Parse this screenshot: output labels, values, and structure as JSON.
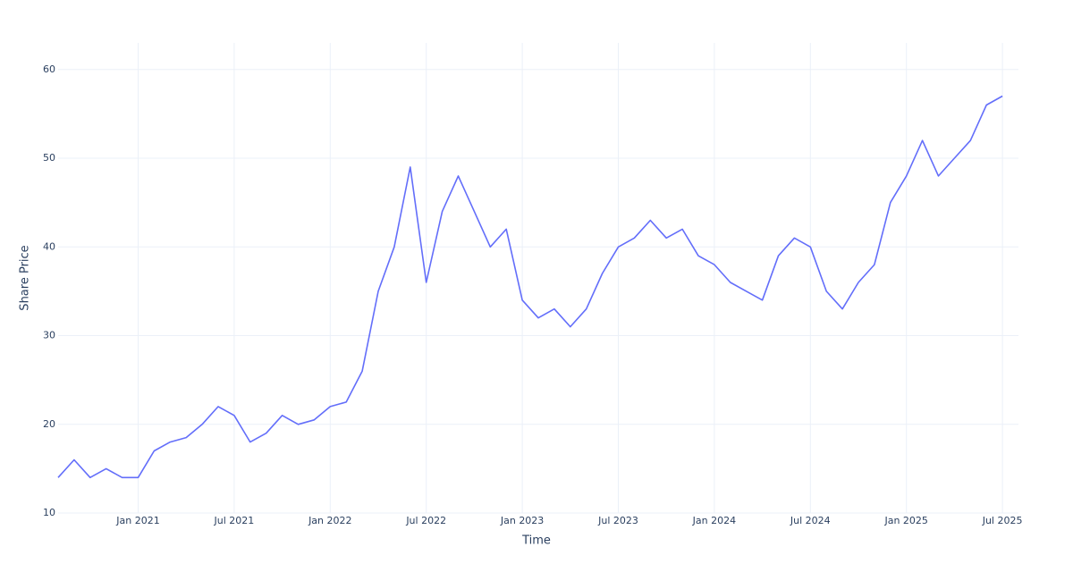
{
  "chart_data": {
    "type": "line",
    "x_label": "Time",
    "y_label": "Share Price",
    "x": [
      "2020-08",
      "2020-09",
      "2020-10",
      "2020-11",
      "2020-12",
      "2021-01",
      "2021-02",
      "2021-03",
      "2021-04",
      "2021-05",
      "2021-06",
      "2021-07",
      "2021-08",
      "2021-09",
      "2021-10",
      "2021-11",
      "2021-12",
      "2022-01",
      "2022-02",
      "2022-03",
      "2022-04",
      "2022-05",
      "2022-06",
      "2022-07",
      "2022-08",
      "2022-09",
      "2022-10",
      "2022-11",
      "2022-12",
      "2023-01",
      "2023-02",
      "2023-03",
      "2023-04",
      "2023-05",
      "2023-06",
      "2023-07",
      "2023-08",
      "2023-09",
      "2023-10",
      "2023-11",
      "2023-12",
      "2024-01",
      "2024-02",
      "2024-03",
      "2024-04",
      "2024-05",
      "2024-06",
      "2024-07",
      "2024-08",
      "2024-09",
      "2024-10",
      "2024-11",
      "2024-12",
      "2025-01",
      "2025-02",
      "2025-03",
      "2025-04",
      "2025-05",
      "2025-06",
      "2025-07"
    ],
    "series": [
      {
        "name": "Share Price",
        "color": "#636efa",
        "values": [
          14,
          16,
          14,
          15,
          14,
          14,
          17,
          18,
          18.5,
          20,
          22,
          21,
          18,
          19,
          21,
          20,
          20.5,
          22,
          22.5,
          26,
          35,
          40,
          49,
          36,
          44,
          48,
          44,
          40,
          42,
          34,
          32,
          33,
          31,
          33,
          37,
          40,
          41,
          43,
          41,
          42,
          39,
          38,
          36,
          35,
          34,
          39,
          41,
          40,
          35,
          33,
          36,
          38,
          45,
          48,
          52,
          48,
          50,
          52,
          56,
          57
        ]
      }
    ],
    "xlim": [
      "2020-08",
      "2025-08"
    ],
    "xticks": [
      {
        "value": "2021-01",
        "label": "Jan 2021"
      },
      {
        "value": "2021-07",
        "label": "Jul 2021"
      },
      {
        "value": "2022-01",
        "label": "Jan 2022"
      },
      {
        "value": "2022-07",
        "label": "Jul 2022"
      },
      {
        "value": "2023-01",
        "label": "Jan 2023"
      },
      {
        "value": "2023-07",
        "label": "Jul 2023"
      },
      {
        "value": "2024-01",
        "label": "Jan 2024"
      },
      {
        "value": "2024-07",
        "label": "Jul 2024"
      },
      {
        "value": "2025-01",
        "label": "Jan 2025"
      },
      {
        "value": "2025-07",
        "label": "Jul 2025"
      }
    ],
    "ylim": [
      10,
      63
    ],
    "yticks": [
      10,
      20,
      30,
      40,
      50,
      60
    ],
    "grid": true
  }
}
